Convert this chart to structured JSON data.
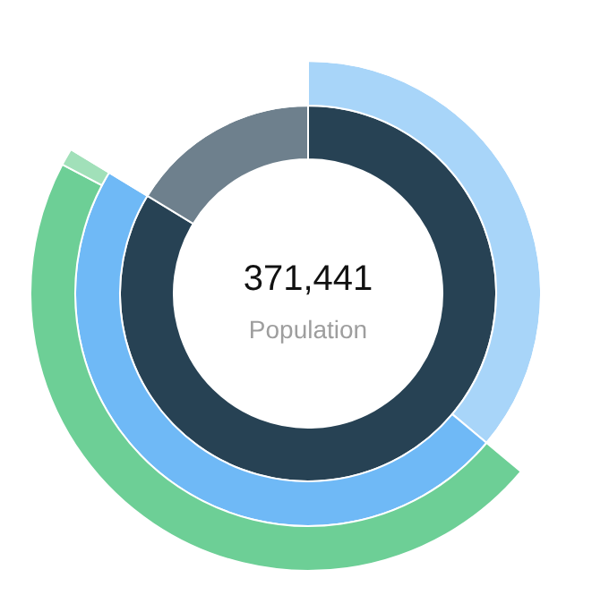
{
  "chart_data": {
    "type": "donut",
    "series": [
      {
        "values": [
          83.7,
          16.3
        ],
        "colors": [
          "#274254",
          "#6e808d"
        ]
      },
      {
        "values": [
          36.1,
          47.6,
          16.3
        ],
        "colors": [
          "#a8d5f9",
          "#6fb9f6",
          "#ffffff"
        ]
      },
      {
        "values": [
          36.1,
          46.6,
          1.0,
          16.3
        ],
        "colors": [
          "#ffffff",
          "#6dcf96",
          "#a1e0b9",
          "#ffffff"
        ]
      }
    ],
    "annotations": [
      "371,441",
      "Population"
    ]
  }
}
